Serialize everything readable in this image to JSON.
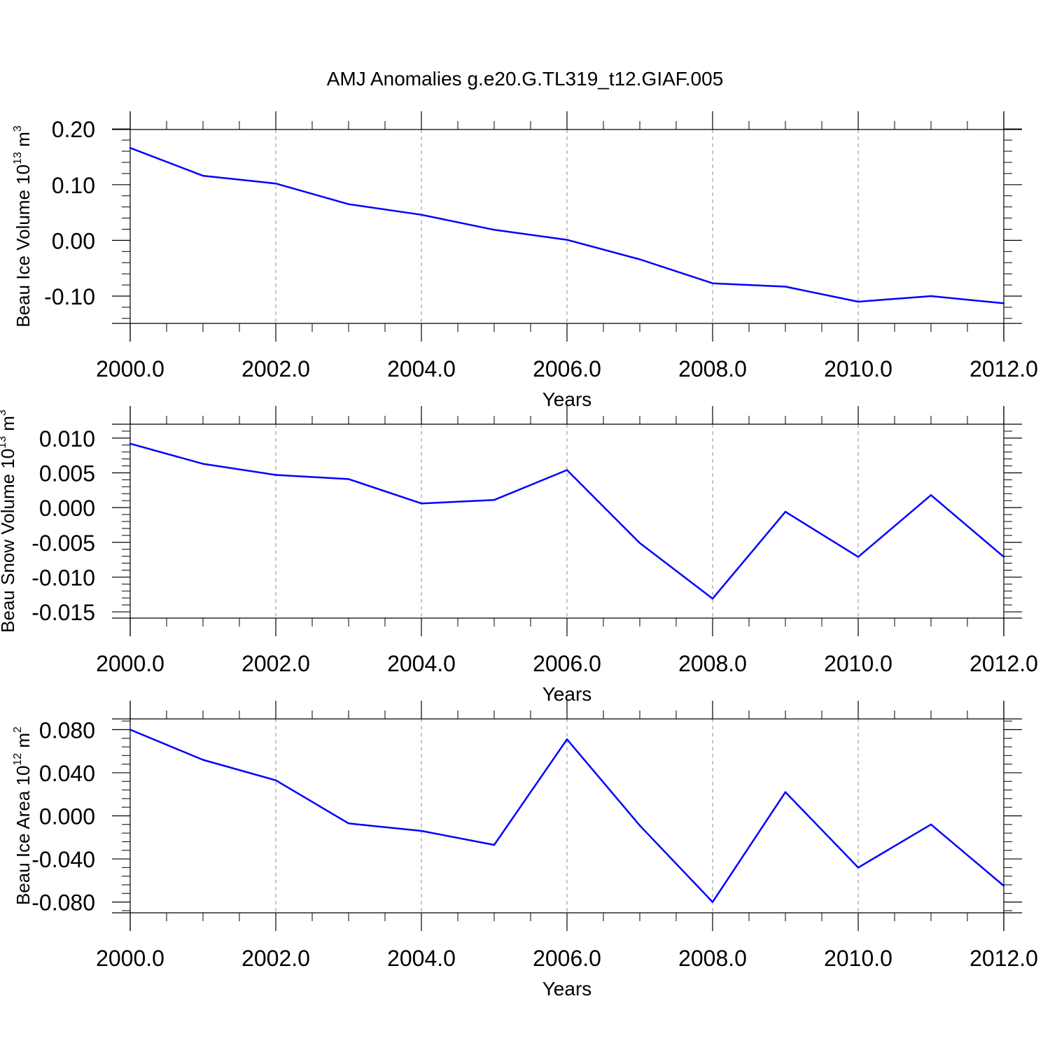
{
  "title": "AMJ Anomalies g.e20.G.TL319_t12.GIAF.005",
  "colors": {
    "line": "#0000ff",
    "axis": "#000000",
    "grid": "#888888"
  },
  "chart_data": [
    {
      "type": "line",
      "xlabel": "Years",
      "ylabel": {
        "main": "Beau Ice Volume 10",
        "exp": "13",
        "unit": " m",
        "unit_exp": "3"
      },
      "x": [
        2000,
        2001,
        2002,
        2003,
        2004,
        2005,
        2006,
        2007,
        2008,
        2009,
        2010,
        2011,
        2012
      ],
      "values": [
        0.166,
        0.116,
        0.102,
        0.065,
        0.046,
        0.019,
        0.001,
        -0.034,
        -0.077,
        -0.083,
        -0.11,
        -0.1,
        -0.113
      ],
      "xlim": [
        2000,
        2012
      ],
      "ylim": [
        -0.149,
        0.199
      ],
      "xticks": [
        2000,
        2002,
        2004,
        2006,
        2008,
        2010,
        2012
      ],
      "xtick_labels": [
        "2000.0",
        "2002.0",
        "2004.0",
        "2006.0",
        "2008.0",
        "2010.0",
        "2012.0"
      ],
      "yticks": [
        0.2,
        0.1,
        0.0,
        -0.1
      ],
      "ytick_labels": [
        "0.20",
        "0.10",
        "0.00",
        "-0.10"
      ],
      "yminor_step": 0.02,
      "grid": "vertical dashed at major x ticks"
    },
    {
      "type": "line",
      "xlabel": "Years",
      "ylabel": {
        "main": "Beau Snow Volume 10",
        "exp": "13",
        "unit": " m",
        "unit_exp": "3"
      },
      "x": [
        2000,
        2001,
        2002,
        2003,
        2004,
        2005,
        2006,
        2007,
        2008,
        2009,
        2010,
        2011,
        2012
      ],
      "values": [
        0.0092,
        0.0063,
        0.0047,
        0.0041,
        0.0006,
        0.0011,
        0.0054,
        -0.0051,
        -0.0131,
        -0.0006,
        -0.0071,
        0.0018,
        -0.0071
      ],
      "xlim": [
        2000,
        2012
      ],
      "ylim": [
        -0.0159,
        0.012
      ],
      "xticks": [
        2000,
        2002,
        2004,
        2006,
        2008,
        2010,
        2012
      ],
      "xtick_labels": [
        "2000.0",
        "2002.0",
        "2004.0",
        "2006.0",
        "2008.0",
        "2010.0",
        "2012.0"
      ],
      "yticks": [
        0.01,
        0.005,
        0.0,
        -0.005,
        -0.01,
        -0.015
      ],
      "ytick_labels": [
        "0.010",
        "0.005",
        "0.000",
        "-0.005",
        "-0.010",
        "-0.015"
      ],
      "yminor_step": 0.001,
      "grid": "vertical dashed at major x ticks"
    },
    {
      "type": "line",
      "xlabel": "Years",
      "ylabel": {
        "main": "Beau Ice Area 10",
        "exp": "12",
        "unit": " m",
        "unit_exp": "2"
      },
      "x": [
        2000,
        2001,
        2002,
        2003,
        2004,
        2005,
        2006,
        2007,
        2008,
        2009,
        2010,
        2011,
        2012
      ],
      "values": [
        0.08,
        0.052,
        0.033,
        -0.007,
        -0.014,
        -0.027,
        0.071,
        -0.009,
        -0.08,
        0.022,
        -0.048,
        -0.008,
        -0.065
      ],
      "xlim": [
        2000,
        2012
      ],
      "ylim": [
        -0.09,
        0.09
      ],
      "xticks": [
        2000,
        2002,
        2004,
        2006,
        2008,
        2010,
        2012
      ],
      "xtick_labels": [
        "2000.0",
        "2002.0",
        "2004.0",
        "2006.0",
        "2008.0",
        "2010.0",
        "2012.0"
      ],
      "yticks": [
        0.08,
        0.04,
        0.0,
        -0.04,
        -0.08
      ],
      "ytick_labels": [
        "0.080",
        "0.040",
        "0.000",
        "-0.040",
        "-0.080"
      ],
      "yminor_step": 0.008,
      "grid": "vertical dashed at major x ticks"
    }
  ]
}
